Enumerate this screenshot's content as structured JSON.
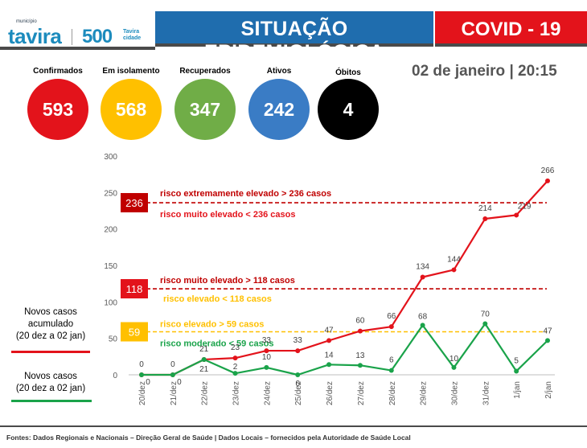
{
  "header": {
    "logo_municipio": "município",
    "logo_tavira": "tavira",
    "logo_500": "500",
    "logo_tavira_cidade_1": "Tavira",
    "logo_tavira_cidade_2": "cidade",
    "title": "SITUAÇÃO EPIDEMIOLÓGICA",
    "covid": "COVID - 19"
  },
  "colors": {
    "blue": "#1f6dae",
    "red": "#e3131b",
    "yellow": "#ffc000",
    "green": "#70ad47",
    "stat_blue": "#3a7cc5",
    "black": "#000000"
  },
  "stats": [
    {
      "label": "Confirmados",
      "value": "593",
      "color": "#e3131b"
    },
    {
      "label": "Em isolamento",
      "value": "568",
      "color": "#ffc000"
    },
    {
      "label": "Recuperados",
      "value": "347",
      "color": "#70ad47"
    },
    {
      "label": "Ativos",
      "value": "242",
      "color": "#3a7cc5"
    },
    {
      "label": "Óbitos",
      "value": "4",
      "color": "#000000"
    }
  ],
  "date": "02 de janeiro | 20:15",
  "chart_data": {
    "type": "line",
    "categories": [
      "20/dez",
      "21/dez",
      "22/dez",
      "23/dez",
      "24/dez",
      "25/dez",
      "26/dez",
      "27/dez",
      "28/dez",
      "29/dez",
      "30/dez",
      "31/dez",
      "1/jan",
      "2/jan"
    ],
    "ylim": [
      0,
      300
    ],
    "yticks": [
      "0",
      "50",
      "100",
      "150",
      "200",
      "250",
      "300"
    ],
    "series": [
      {
        "name": "Novos casos acumulado (20 dez a 02 jan)",
        "color": "#e3131b",
        "values": [
          0,
          0,
          21,
          23,
          33,
          33,
          47,
          60,
          66,
          134,
          144,
          214,
          219,
          266
        ],
        "labels": [
          "0",
          "0",
          "21",
          "23",
          "33",
          "33",
          "47",
          "60",
          "66",
          "134",
          "144",
          "214",
          "219",
          "266"
        ]
      },
      {
        "name": "Novos casos (20 dez a 02 jan)",
        "color": "#1aa34a",
        "values": [
          0,
          0,
          21,
          2,
          10,
          0,
          14,
          13,
          6,
          68,
          10,
          70,
          5,
          47
        ],
        "labels": [
          "0",
          "0",
          "21",
          "2",
          "10",
          "0",
          "14",
          "13",
          "6",
          "68",
          "10",
          "70",
          "5",
          "47"
        ]
      }
    ],
    "thresholds": [
      {
        "value": 236,
        "label": "236",
        "color": "#c00000",
        "line_color": "#c00000",
        "text_above": "risco extremamente elevado > 236 casos",
        "text_below": "risco muito elevado < 236 casos",
        "text_above_color": "#c00000",
        "text_below_color": "#e3131b"
      },
      {
        "value": 118,
        "label": "118",
        "color": "#e3131b",
        "line_color": "#c00000",
        "text_above": "risco muito elevado > 118 casos",
        "text_below": "risco elevado < 118 casos",
        "text_above_color": "#c00000",
        "text_below_color": "#ffc000"
      },
      {
        "value": 59,
        "label": "59",
        "color": "#ffc000",
        "line_color": "#ffc000",
        "text_above": "risco elevado > 59 casos",
        "text_below": "risco moderado < 59 casos",
        "text_above_color": "#ffc000",
        "text_below_color": "#1aa34a"
      }
    ],
    "legend": [
      {
        "text_1": "Novos casos",
        "text_2": "acumulado",
        "text_3": "(20 dez a 02 jan)",
        "color": "#e3131b"
      },
      {
        "text_1": "Novos casos",
        "text_2": "(20 dez a 02 jan)",
        "color": "#1aa34a"
      }
    ]
  },
  "footer": "Fontes: Dados Regionais e Nacionais – Direção Geral de Saúde  |  Dados Locais – fornecidos pela Autoridade de Saúde Local"
}
